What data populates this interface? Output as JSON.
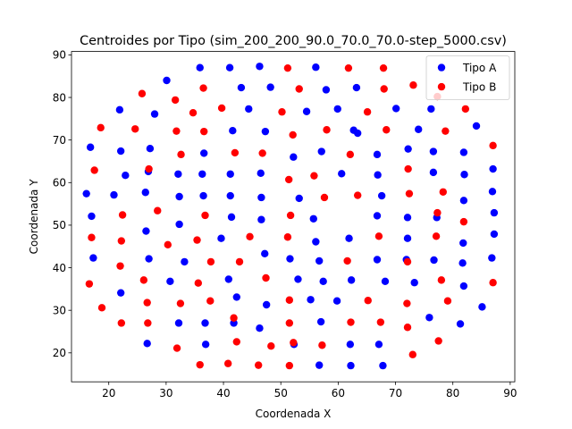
{
  "chart_data": {
    "type": "scatter",
    "title": "Centroides por Tipo (sim_200_200_90.0_70.0_70.0-step_5000.csv)",
    "xlabel": "Coordenada X",
    "ylabel": "Coordenada Y",
    "xlim": [
      13.5,
      90.8
    ],
    "ylim": [
      13.2,
      90.8
    ],
    "xticks": [
      20,
      30,
      40,
      50,
      60,
      70,
      80,
      90
    ],
    "yticks": [
      20,
      30,
      40,
      50,
      60,
      70,
      80,
      90
    ],
    "grid": false,
    "legend_position": "top-right",
    "series": [
      {
        "name": "Tipo A",
        "color": "#0000ff",
        "points": [
          [
            35.9,
            87
          ],
          [
            41.1,
            87
          ],
          [
            46.3,
            87.3
          ],
          [
            56.1,
            87.1
          ],
          [
            30.1,
            84
          ],
          [
            43.1,
            82.3
          ],
          [
            48.2,
            82.4
          ],
          [
            57.9,
            81.8
          ],
          [
            63.2,
            82.3
          ],
          [
            21.9,
            77.1
          ],
          [
            28,
            76.1
          ],
          [
            44.4,
            77.3
          ],
          [
            54.5,
            76.7
          ],
          [
            59.9,
            77.3
          ],
          [
            70.1,
            77.4
          ],
          [
            76.2,
            77.3
          ],
          [
            84.1,
            73.3
          ],
          [
            16.8,
            68.3
          ],
          [
            22.1,
            67.4
          ],
          [
            27.2,
            68
          ],
          [
            36.6,
            66.9
          ],
          [
            41.6,
            72.2
          ],
          [
            47.3,
            72
          ],
          [
            52.2,
            66
          ],
          [
            57.1,
            67.3
          ],
          [
            62.7,
            72.3
          ],
          [
            63.4,
            71.6
          ],
          [
            66.8,
            66.6
          ],
          [
            72.2,
            67.9
          ],
          [
            74,
            72.5
          ],
          [
            76.6,
            67.3
          ],
          [
            81.9,
            67.1
          ],
          [
            87,
            63.2
          ],
          [
            22.9,
            61.7
          ],
          [
            26.9,
            62.6
          ],
          [
            32.1,
            62
          ],
          [
            36.3,
            62
          ],
          [
            41.2,
            62
          ],
          [
            46.5,
            62.2
          ],
          [
            60.6,
            62.1
          ],
          [
            66.9,
            61.8
          ],
          [
            76.6,
            62.4
          ],
          [
            82,
            61.9
          ],
          [
            16.1,
            57.4
          ],
          [
            20.9,
            57.1
          ],
          [
            26.4,
            57.7
          ],
          [
            32.3,
            56.7
          ],
          [
            36.5,
            56.9
          ],
          [
            41.2,
            56.9
          ],
          [
            46.6,
            56.5
          ],
          [
            53.2,
            56.3
          ],
          [
            67.6,
            56.9
          ],
          [
            81.9,
            55.8
          ],
          [
            86.9,
            57.9
          ],
          [
            17,
            52.1
          ],
          [
            32.3,
            50.2
          ],
          [
            41.4,
            51.9
          ],
          [
            46.6,
            51.3
          ],
          [
            55.7,
            51.5
          ],
          [
            66.8,
            52.2
          ],
          [
            72.1,
            51.8
          ],
          [
            77.2,
            51.8
          ],
          [
            87.2,
            52.9
          ],
          [
            26.5,
            48.6
          ],
          [
            39.6,
            46.9
          ],
          [
            56.1,
            46.1
          ],
          [
            61.9,
            46.9
          ],
          [
            72.1,
            46.9
          ],
          [
            81.8,
            45.8
          ],
          [
            87.2,
            47.9
          ],
          [
            17.3,
            42.3
          ],
          [
            27,
            42.1
          ],
          [
            33.2,
            41.4
          ],
          [
            47.2,
            43.3
          ],
          [
            51.6,
            42.1
          ],
          [
            56.7,
            41.6
          ],
          [
            66.8,
            41.9
          ],
          [
            71.9,
            41.9
          ],
          [
            81.7,
            41.1
          ],
          [
            76.7,
            41.8
          ],
          [
            86.8,
            42.3
          ],
          [
            22.1,
            34.1
          ],
          [
            30.7,
            36.8
          ],
          [
            40.9,
            37.3
          ],
          [
            53,
            37.3
          ],
          [
            57.4,
            36.8
          ],
          [
            62.3,
            37.1
          ],
          [
            68.2,
            36.8
          ],
          [
            73.3,
            36.5
          ],
          [
            81.9,
            35.7
          ],
          [
            42.3,
            33.1
          ],
          [
            47.5,
            31.3
          ],
          [
            55.2,
            32.5
          ],
          [
            59.8,
            32.2
          ],
          [
            85.1,
            30.8
          ],
          [
            75.9,
            28.3
          ],
          [
            26.7,
            22.2
          ],
          [
            32.2,
            27
          ],
          [
            36.8,
            27
          ],
          [
            36.9,
            22
          ],
          [
            41.8,
            27
          ],
          [
            46.3,
            25.8
          ],
          [
            52.3,
            22
          ],
          [
            57,
            27.3
          ],
          [
            62.1,
            22
          ],
          [
            67.1,
            22
          ],
          [
            81.3,
            26.8
          ],
          [
            56.7,
            17.1
          ],
          [
            62.2,
            17
          ],
          [
            67.8,
            17
          ]
        ]
      },
      {
        "name": "Tipo B",
        "color": "#ff0000",
        "points": [
          [
            51.2,
            86.9
          ],
          [
            61.8,
            86.9
          ],
          [
            67.9,
            86.9
          ],
          [
            25.8,
            80.9
          ],
          [
            31.6,
            79.4
          ],
          [
            36.5,
            82.2
          ],
          [
            53.2,
            82
          ],
          [
            68,
            82
          ],
          [
            73.1,
            82.9
          ],
          [
            77.3,
            80.2
          ],
          [
            18.6,
            72.9
          ],
          [
            24.6,
            72.6
          ],
          [
            34.7,
            76.4
          ],
          [
            39.7,
            77.5
          ],
          [
            50.2,
            76.6
          ],
          [
            65.1,
            76.6
          ],
          [
            82.2,
            77.3
          ],
          [
            31.8,
            72.1
          ],
          [
            36.6,
            72
          ],
          [
            52.1,
            71.2
          ],
          [
            58,
            72.4
          ],
          [
            68.4,
            72.4
          ],
          [
            78.7,
            72.1
          ],
          [
            32.6,
            66.6
          ],
          [
            42,
            67
          ],
          [
            46.8,
            66.9
          ],
          [
            62.1,
            66.6
          ],
          [
            87,
            68.7
          ],
          [
            17.5,
            62.9
          ],
          [
            27,
            63.2
          ],
          [
            51.4,
            60.7
          ],
          [
            55.8,
            61.6
          ],
          [
            72.2,
            63.2
          ],
          [
            22.4,
            52.4
          ],
          [
            28.5,
            53.4
          ],
          [
            36.8,
            52.3
          ],
          [
            51.7,
            52.3
          ],
          [
            57.6,
            56.5
          ],
          [
            63.4,
            57
          ],
          [
            72.4,
            57.4
          ],
          [
            78.3,
            57.8
          ],
          [
            17,
            47.1
          ],
          [
            22.2,
            46.3
          ],
          [
            30.3,
            45.4
          ],
          [
            35.4,
            46.5
          ],
          [
            44.6,
            47.3
          ],
          [
            51.2,
            47.2
          ],
          [
            67.1,
            47.4
          ],
          [
            77.1,
            47.4
          ],
          [
            77.3,
            52.9
          ],
          [
            81.9,
            50.8
          ],
          [
            22,
            40.4
          ],
          [
            37.8,
            41.4
          ],
          [
            42.8,
            41.4
          ],
          [
            61.6,
            41.6
          ],
          [
            72.1,
            41.4
          ],
          [
            16.6,
            36.2
          ],
          [
            26.1,
            37.1
          ],
          [
            35.6,
            36.4
          ],
          [
            47.4,
            37.6
          ],
          [
            78,
            37.1
          ],
          [
            87,
            36.5
          ],
          [
            18.8,
            30.6
          ],
          [
            26.7,
            31.8
          ],
          [
            32.5,
            31.6
          ],
          [
            37.7,
            32.2
          ],
          [
            51.5,
            32.4
          ],
          [
            65.2,
            32.3
          ],
          [
            72,
            31.6
          ],
          [
            79.1,
            32.2
          ],
          [
            22.2,
            27
          ],
          [
            26.8,
            27
          ],
          [
            41.8,
            28.2
          ],
          [
            51.5,
            27
          ],
          [
            62.2,
            27.2
          ],
          [
            67.4,
            27.2
          ],
          [
            72.1,
            26
          ],
          [
            31.9,
            21.1
          ],
          [
            42.3,
            22.6
          ],
          [
            48.3,
            21.6
          ],
          [
            52.2,
            22.4
          ],
          [
            57.2,
            21.8
          ],
          [
            73,
            19.6
          ],
          [
            77.5,
            22.8
          ],
          [
            35.9,
            17.2
          ],
          [
            40.8,
            17.5
          ],
          [
            46.1,
            17.1
          ],
          [
            51.5,
            17
          ]
        ]
      }
    ]
  }
}
